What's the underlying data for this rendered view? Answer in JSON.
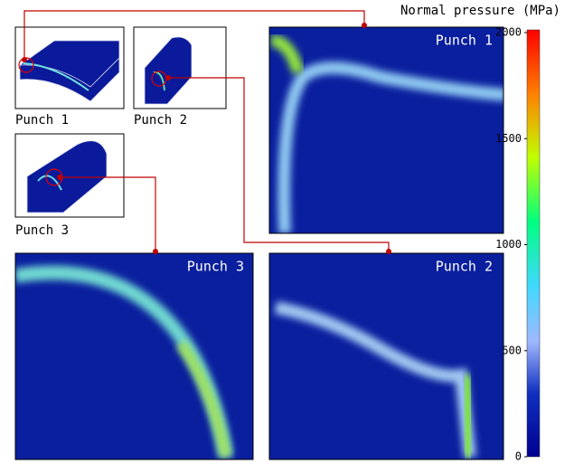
{
  "colorbar": {
    "title": "Normal pressure (MPa)",
    "range": [
      0,
      2000
    ],
    "ticks": [
      0,
      500,
      1000,
      1500,
      2000
    ]
  },
  "thumbnails": [
    {
      "label": "Punch 1"
    },
    {
      "label": "Punch 2"
    },
    {
      "label": "Punch 3"
    }
  ],
  "panels": [
    {
      "label": "Punch 1"
    },
    {
      "label": "Punch 3"
    },
    {
      "label": "Punch 2"
    }
  ]
}
